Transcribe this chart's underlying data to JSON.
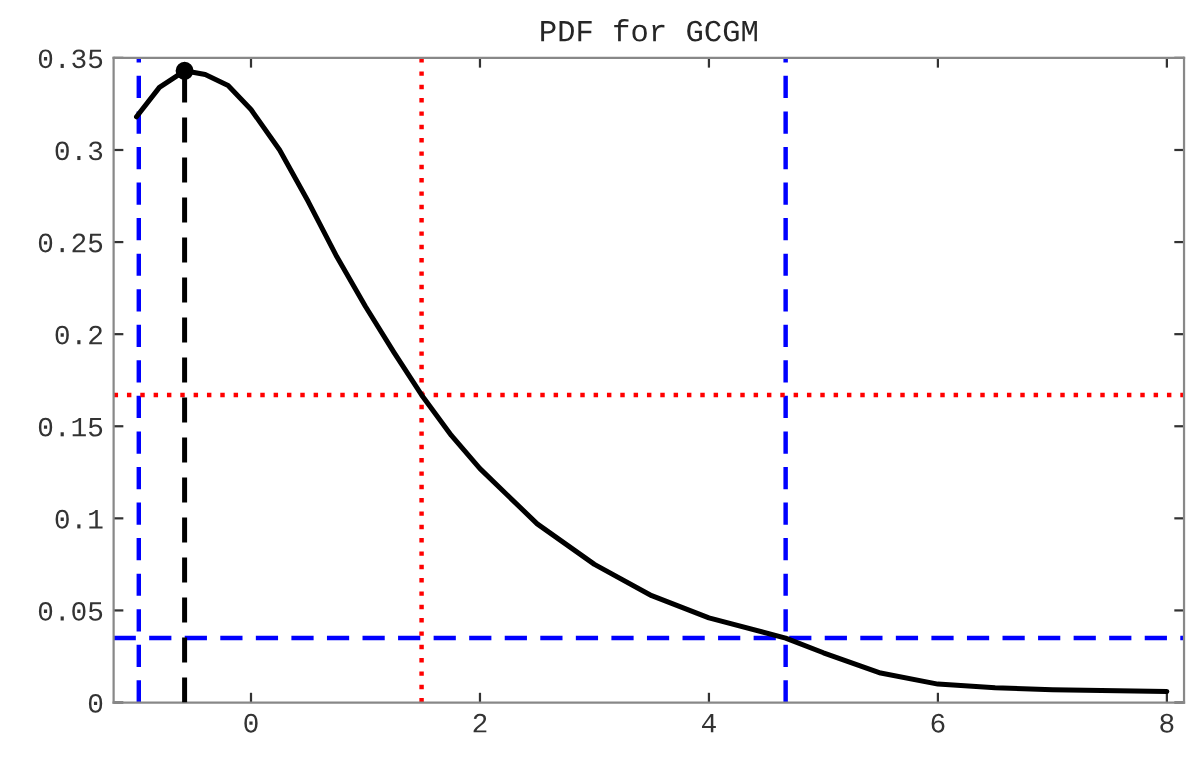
{
  "chart_data": {
    "type": "line",
    "title": "PDF for GCGM",
    "xlim": [
      -1.2,
      8.15
    ],
    "ylim": [
      0,
      0.35
    ],
    "xticks": [
      0,
      2,
      4,
      6,
      8
    ],
    "yticks": [
      0,
      0.05,
      0.1,
      0.15,
      0.2,
      0.25,
      0.3,
      0.35
    ],
    "grid": false,
    "series": [
      {
        "color": "#000000",
        "line_style": "solid",
        "marker": "none",
        "x": [
          -1,
          -0.8,
          -0.58,
          -0.4,
          -0.2,
          0,
          0.25,
          0.5,
          0.75,
          1.0,
          1.25,
          1.49,
          1.75,
          2.0,
          2.5,
          3.0,
          3.5,
          4.0,
          4.67,
          5.0,
          5.5,
          6.0,
          6.5,
          7.0,
          8.0
        ],
        "values": [
          0.318,
          0.334,
          0.343,
          0.341,
          0.335,
          0.322,
          0.3,
          0.272,
          0.242,
          0.215,
          0.19,
          0.167,
          0.145,
          0.127,
          0.097,
          0.075,
          0.058,
          0.046,
          0.035,
          0.027,
          0.016,
          0.01,
          0.008,
          0.007,
          0.006
        ]
      },
      {
        "type": "line",
        "color": "#000000",
        "line_style": "dashed",
        "marker": "none",
        "x": [
          -0.58,
          -0.58
        ],
        "values": [
          0,
          0.343
        ]
      },
      {
        "type": "scatter",
        "color": "#000000",
        "marker": "circle",
        "x": [
          -0.58
        ],
        "values": [
          0.343
        ]
      }
    ],
    "ref_lines": [
      {
        "axis": "x",
        "value": -0.98,
        "color": "#0000ff",
        "line_style": "dashed"
      },
      {
        "axis": "x",
        "value": 4.67,
        "color": "#0000ff",
        "line_style": "dashed"
      },
      {
        "axis": "y",
        "value": 0.035,
        "color": "#0000ff",
        "line_style": "dashed"
      },
      {
        "axis": "x",
        "value": 1.49,
        "color": "#ff0000",
        "line_style": "dotted"
      },
      {
        "axis": "y",
        "value": 0.167,
        "color": "#ff0000",
        "line_style": "dotted"
      }
    ]
  }
}
